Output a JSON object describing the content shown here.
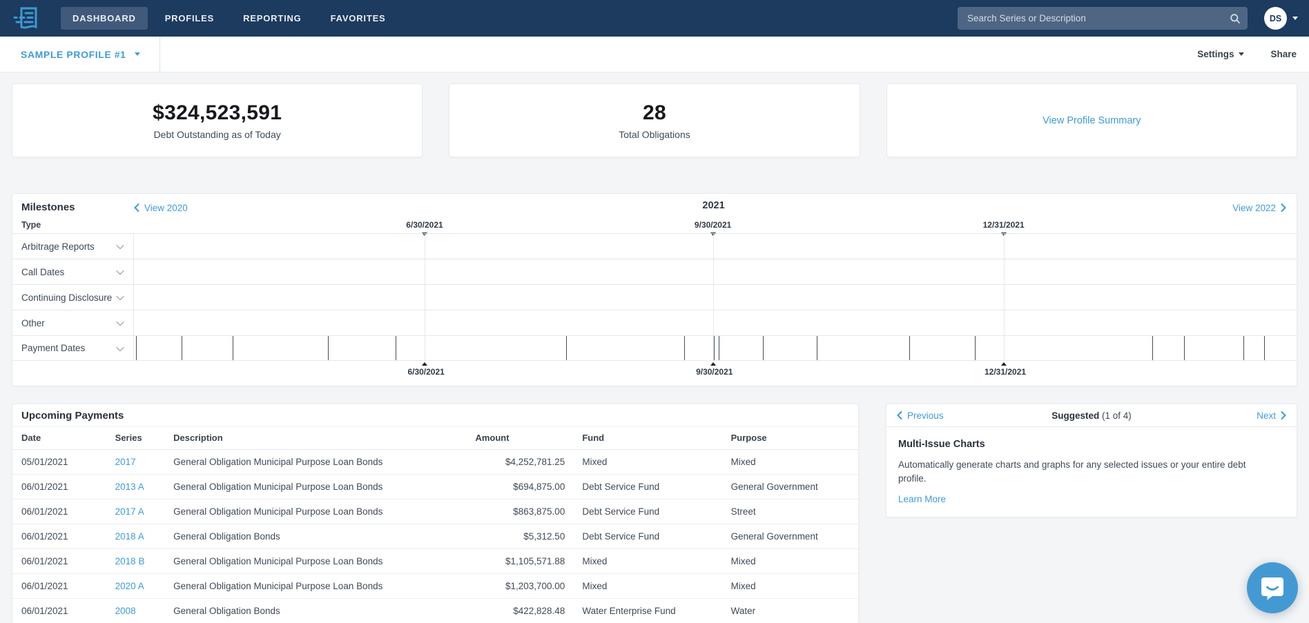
{
  "nav": {
    "items": [
      {
        "label": "DASHBOARD",
        "active": true
      },
      {
        "label": "PROFILES",
        "active": false
      },
      {
        "label": "REPORTING",
        "active": false
      },
      {
        "label": "FAVORITES",
        "active": false
      }
    ],
    "search_placeholder": "Search Series or Description",
    "avatar_initials": "DS"
  },
  "profile_bar": {
    "profile_name": "SAMPLE PROFILE #1",
    "settings_label": "Settings",
    "share_label": "Share"
  },
  "summary_cards": {
    "debt": {
      "value": "$324,523,591",
      "label": "Debt Outstanding as of Today"
    },
    "obligations": {
      "value": "28",
      "label": "Total Obligations"
    },
    "summary_link": "View Profile Summary"
  },
  "milestones": {
    "title": "Milestones",
    "prev_label": "View 2020",
    "year": "2021",
    "next_label": "View 2022",
    "type_header": "Type",
    "quarters": [
      {
        "label": "6/30/2021",
        "percent": 25.0
      },
      {
        "label": "9/30/2021",
        "percent": 49.8
      },
      {
        "label": "12/31/2021",
        "percent": 74.8
      }
    ],
    "rows": [
      {
        "label": "Arbitrage Reports"
      },
      {
        "label": "Call Dates"
      },
      {
        "label": "Continuing Disclosure"
      },
      {
        "label": "Other"
      },
      {
        "label": "Payment Dates"
      }
    ],
    "payment_tick_percents": [
      0.2,
      4.1,
      8.5,
      16.7,
      22.5,
      37.2,
      47.3,
      49.9,
      50.3,
      54.1,
      58.7,
      66.7,
      72.3,
      87.6,
      90.3,
      95.4,
      97.2
    ]
  },
  "upcoming_payments": {
    "title": "Upcoming Payments",
    "columns": [
      "Date",
      "Series",
      "Description",
      "Amount",
      "Fund",
      "Purpose"
    ],
    "rows": [
      {
        "date": "05/01/2021",
        "series": "2017",
        "description": "General Obligation Municipal Purpose Loan Bonds",
        "amount": "$4,252,781.25",
        "fund": "Mixed",
        "purpose": "Mixed"
      },
      {
        "date": "06/01/2021",
        "series": "2013 A",
        "description": "General Obligation Municipal Purpose Loan Bonds",
        "amount": "$694,875.00",
        "fund": "Debt Service Fund",
        "purpose": "General Government"
      },
      {
        "date": "06/01/2021",
        "series": "2017 A",
        "description": "General Obligation Municipal Purpose Loan Bonds",
        "amount": "$863,875.00",
        "fund": "Debt Service Fund",
        "purpose": "Street"
      },
      {
        "date": "06/01/2021",
        "series": "2018 A",
        "description": "General Obligation Bonds",
        "amount": "$5,312.50",
        "fund": "Debt Service Fund",
        "purpose": "General Government"
      },
      {
        "date": "06/01/2021",
        "series": "2018 B",
        "description": "General Obligation Municipal Purpose Loan Bonds",
        "amount": "$1,105,571.88",
        "fund": "Mixed",
        "purpose": "Mixed"
      },
      {
        "date": "06/01/2021",
        "series": "2020 A",
        "description": "General Obligation Municipal Purpose Loan Bonds",
        "amount": "$1,203,700.00",
        "fund": "Mixed",
        "purpose": "Mixed"
      },
      {
        "date": "06/01/2021",
        "series": "2008",
        "description": "General Obligation Bonds",
        "amount": "$422,828.48",
        "fund": "Water Enterprise Fund",
        "purpose": "Water"
      }
    ]
  },
  "suggested": {
    "prev_label": "Previous",
    "title": "Suggested",
    "count": "(1 of 4)",
    "next_label": "Next",
    "card_title": "Multi-Issue Charts",
    "card_body": "Automatically generate charts and graphs for any selected issues or your entire debt profile.",
    "link_label": "Learn More"
  },
  "colors": {
    "nav_bg": "#1d3a5f",
    "nav_active_bg": "#41597a",
    "search_bg": "#4e6683",
    "link_blue": "#3f9bd6",
    "page_bg": "#f3f5f7",
    "chat_bg": "#4599d2",
    "tick": "#464e58"
  }
}
